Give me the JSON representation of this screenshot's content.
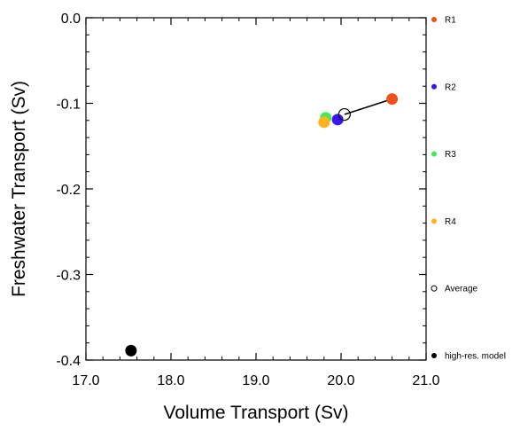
{
  "chart_data": {
    "type": "scatter",
    "xlabel": "Volume Transport (Sv)",
    "ylabel": "Freshwater Transport (Sv)",
    "xlim": [
      17.0,
      21.0
    ],
    "ylim": [
      -0.4,
      0.0
    ],
    "x_ticks": [
      17.0,
      18.0,
      19.0,
      20.0,
      21.0
    ],
    "x_tick_labels": [
      "17.0",
      "18.0",
      "19.0",
      "20.0",
      "21.0"
    ],
    "y_ticks": [
      0.0,
      -0.1,
      -0.2,
      -0.3,
      -0.4
    ],
    "y_tick_labels": [
      "0.0",
      "-0.1",
      "-0.2",
      "-0.3",
      "-0.4"
    ],
    "grid": false,
    "legend_placement": "right",
    "series": [
      {
        "name": "R1",
        "color": "#f24e1d",
        "marker": "filled-circle",
        "x": 20.6,
        "y": -0.095
      },
      {
        "name": "R2",
        "color": "#3b14f0",
        "marker": "filled-circle",
        "x": 19.96,
        "y": -0.119
      },
      {
        "name": "R3",
        "color": "#44ea55",
        "marker": "filled-circle",
        "x": 19.82,
        "y": -0.117
      },
      {
        "name": "R4",
        "color": "#ffb31f",
        "marker": "filled-circle",
        "x": 19.8,
        "y": -0.122
      },
      {
        "name": "Average",
        "color": "#000000",
        "marker": "open-circle",
        "x": 20.04,
        "y": -0.113
      },
      {
        "name": "high-res. model",
        "color": "#000000",
        "marker": "filled-circle",
        "x": 17.53,
        "y": -0.389
      }
    ],
    "line_segment": {
      "color": "#000000",
      "from": [
        20.04,
        -0.113
      ],
      "to": [
        20.6,
        -0.095
      ]
    }
  }
}
